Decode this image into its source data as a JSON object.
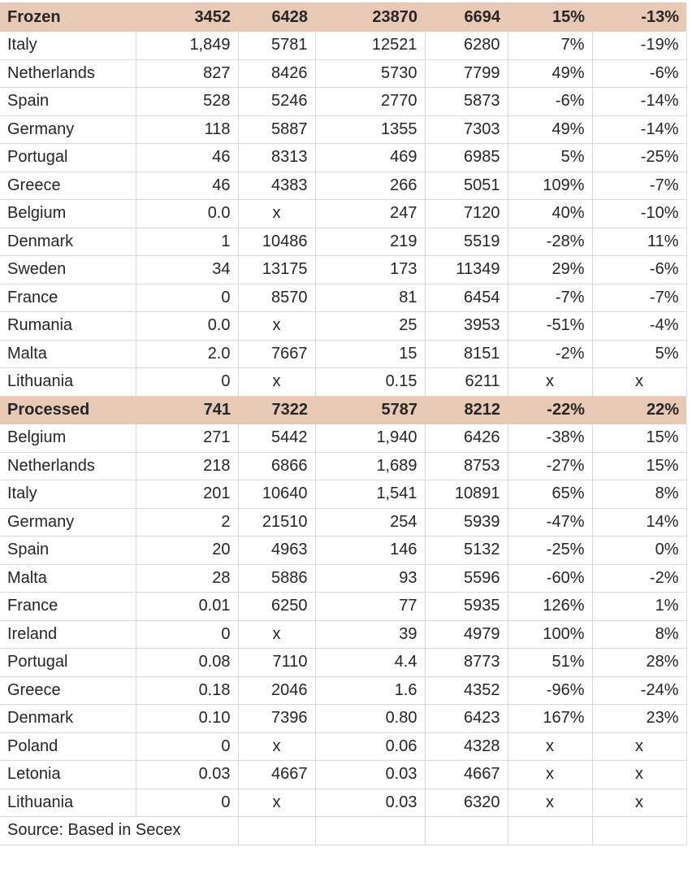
{
  "colors": {
    "section_header_bg": "#e8c9b6",
    "grid_line": "#d9d9d9",
    "text": "#262626",
    "row_bg": "#ffffff"
  },
  "table": {
    "footer": "Source: Based in Secex",
    "sections": [
      {
        "label": "Frozen",
        "totals": [
          "3452",
          "6428",
          "23870",
          "6694",
          "15%",
          "-13%"
        ],
        "rows": [
          {
            "country": "Italy",
            "values": [
              "1,849",
              "5781",
              "12521",
              "6280",
              "7%",
              "-19%"
            ]
          },
          {
            "country": "Netherlands",
            "values": [
              "827",
              "8426",
              "5730",
              "7799",
              "49%",
              "-6%"
            ]
          },
          {
            "country": "Spain",
            "values": [
              "528",
              "5246",
              "2770",
              "5873",
              "-6%",
              "-14%"
            ]
          },
          {
            "country": "Germany",
            "values": [
              "118",
              "5887",
              "1355",
              "7303",
              "49%",
              "-14%"
            ]
          },
          {
            "country": "Portugal",
            "values": [
              "46",
              "8313",
              "469",
              "6985",
              "5%",
              "-25%"
            ]
          },
          {
            "country": "Greece",
            "values": [
              "46",
              "4383",
              "266",
              "5051",
              "109%",
              "-7%"
            ]
          },
          {
            "country": "Belgium",
            "values": [
              "0.0",
              "x",
              "247",
              "7120",
              "40%",
              "-10%"
            ]
          },
          {
            "country": "Denmark",
            "values": [
              "1",
              "10486",
              "219",
              "5519",
              "-28%",
              "11%"
            ]
          },
          {
            "country": "Sweden",
            "values": [
              "34",
              "13175",
              "173",
              "11349",
              "29%",
              "-6%"
            ]
          },
          {
            "country": "France",
            "values": [
              "0",
              "8570",
              "81",
              "6454",
              "-7%",
              "-7%"
            ]
          },
          {
            "country": "Rumania",
            "values": [
              "0.0",
              "x",
              "25",
              "3953",
              "-51%",
              "-4%"
            ]
          },
          {
            "country": "Malta",
            "values": [
              "2.0",
              "7667",
              "15",
              "8151",
              "-2%",
              "5%"
            ]
          },
          {
            "country": "Lithuania",
            "values": [
              "0",
              "x",
              "0.15",
              "6211",
              "x",
              "x"
            ]
          }
        ]
      },
      {
        "label": "Processed",
        "totals": [
          "741",
          "7322",
          "5787",
          "8212",
          "-22%",
          "22%"
        ],
        "rows": [
          {
            "country": "Belgium",
            "values": [
              "271",
              "5442",
              "1,940",
              "6426",
              "-38%",
              "15%"
            ]
          },
          {
            "country": "Netherlands",
            "values": [
              "218",
              "6866",
              "1,689",
              "8753",
              "-27%",
              "15%"
            ]
          },
          {
            "country": "Italy",
            "values": [
              "201",
              "10640",
              "1,541",
              "10891",
              "65%",
              "8%"
            ]
          },
          {
            "country": "Germany",
            "values": [
              "2",
              "21510",
              "254",
              "5939",
              "-47%",
              "14%"
            ]
          },
          {
            "country": "Spain",
            "values": [
              "20",
              "4963",
              "146",
              "5132",
              "-25%",
              "0%"
            ]
          },
          {
            "country": "Malta",
            "values": [
              "28",
              "5886",
              "93",
              "5596",
              "-60%",
              "-2%"
            ]
          },
          {
            "country": "France",
            "values": [
              "0.01",
              "6250",
              "77",
              "5935",
              "126%",
              "1%"
            ]
          },
          {
            "country": "Ireland",
            "values": [
              "0",
              "x",
              "39",
              "4979",
              "100%",
              "8%"
            ]
          },
          {
            "country": "Portugal",
            "values": [
              "0.08",
              "7110",
              "4.4",
              "8773",
              "51%",
              "28%"
            ]
          },
          {
            "country": "Greece",
            "values": [
              "0.18",
              "2046",
              "1.6",
              "4352",
              "-96%",
              "-24%"
            ]
          },
          {
            "country": "Denmark",
            "values": [
              "0.10",
              "7396",
              "0.80",
              "6423",
              "167%",
              "23%"
            ]
          },
          {
            "country": "Poland",
            "values": [
              "0",
              "x",
              "0.06",
              "4328",
              "x",
              "x"
            ]
          },
          {
            "country": "Letonia",
            "values": [
              "0.03",
              "4667",
              "0.03",
              "4667",
              "x",
              "x"
            ]
          },
          {
            "country": "Lithuania",
            "values": [
              "0",
              "x",
              "0.03",
              "6320",
              "x",
              "x"
            ]
          }
        ]
      }
    ]
  }
}
